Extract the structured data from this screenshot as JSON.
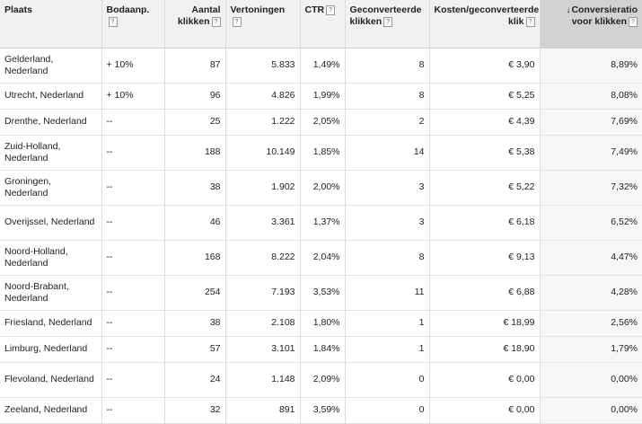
{
  "columns": [
    {
      "label": "Plaats",
      "help": false
    },
    {
      "label": "Bodaanp.",
      "help": true
    },
    {
      "label": "Aantal klikken",
      "help": true
    },
    {
      "label": "Vertoningen",
      "help": true
    },
    {
      "label": "CTR",
      "help": true
    },
    {
      "label": "Geconverteerde klikken",
      "help": true
    },
    {
      "label": "Kosten/geconverteerde klik",
      "help": true
    },
    {
      "label": "Conversieratio voor klikken",
      "help": true,
      "sorted": true
    }
  ],
  "rows": [
    {
      "plaats": "Gelderland, Nederland",
      "bod": "+ 10%",
      "klikken": "87",
      "vertoningen": "5.833",
      "ctr": "1,49%",
      "conv": "8",
      "kosten": "€ 3,90",
      "ratio": "8,89%"
    },
    {
      "plaats": "Utrecht, Nederland",
      "bod": "+ 10%",
      "klikken": "96",
      "vertoningen": "4.826",
      "ctr": "1,99%",
      "conv": "8",
      "kosten": "€ 5,25",
      "ratio": "8,08%"
    },
    {
      "plaats": "Drenthe, Nederland",
      "bod": "--",
      "klikken": "25",
      "vertoningen": "1.222",
      "ctr": "2,05%",
      "conv": "2",
      "kosten": "€ 4,39",
      "ratio": "7,69%"
    },
    {
      "plaats": "Zuid-Holland, Nederland",
      "bod": "--",
      "klikken": "188",
      "vertoningen": "10.149",
      "ctr": "1,85%",
      "conv": "14",
      "kosten": "€ 5,38",
      "ratio": "7,49%"
    },
    {
      "plaats": "Groningen, Nederland",
      "bod": "--",
      "klikken": "38",
      "vertoningen": "1.902",
      "ctr": "2,00%",
      "conv": "3",
      "kosten": "€ 5,22",
      "ratio": "7,32%"
    },
    {
      "plaats": "Overijssel, Nederland",
      "bod": "--",
      "klikken": "46",
      "vertoningen": "3.361",
      "ctr": "1,37%",
      "conv": "3",
      "kosten": "€ 6,18",
      "ratio": "6,52%"
    },
    {
      "plaats": "Noord-Holland, Nederland",
      "bod": "--",
      "klikken": "168",
      "vertoningen": "8.222",
      "ctr": "2,04%",
      "conv": "8",
      "kosten": "€ 9,13",
      "ratio": "4,47%"
    },
    {
      "plaats": "Noord-Brabant, Nederland",
      "bod": "--",
      "klikken": "254",
      "vertoningen": "7.193",
      "ctr": "3,53%",
      "conv": "11",
      "kosten": "€ 6,88",
      "ratio": "4,28%"
    },
    {
      "plaats": "Friesland, Nederland",
      "bod": "--",
      "klikken": "38",
      "vertoningen": "2.108",
      "ctr": "1,80%",
      "conv": "1",
      "kosten": "€ 18,99",
      "ratio": "2,56%"
    },
    {
      "plaats": "Limburg, Nederland",
      "bod": "--",
      "klikken": "57",
      "vertoningen": "3.101",
      "ctr": "1,84%",
      "conv": "1",
      "kosten": "€ 18,90",
      "ratio": "1,79%"
    },
    {
      "plaats": "Flevoland, Nederland",
      "bod": "--",
      "klikken": "24",
      "vertoningen": "1.148",
      "ctr": "2,09%",
      "conv": "0",
      "kosten": "€ 0,00",
      "ratio": "0,00%"
    },
    {
      "plaats": "Zeeland, Nederland",
      "bod": "--",
      "klikken": "32",
      "vertoningen": "891",
      "ctr": "3,59%",
      "conv": "0",
      "kosten": "€ 0,00",
      "ratio": "0,00%"
    }
  ],
  "icons": {
    "help": "?",
    "sort": "↓"
  }
}
